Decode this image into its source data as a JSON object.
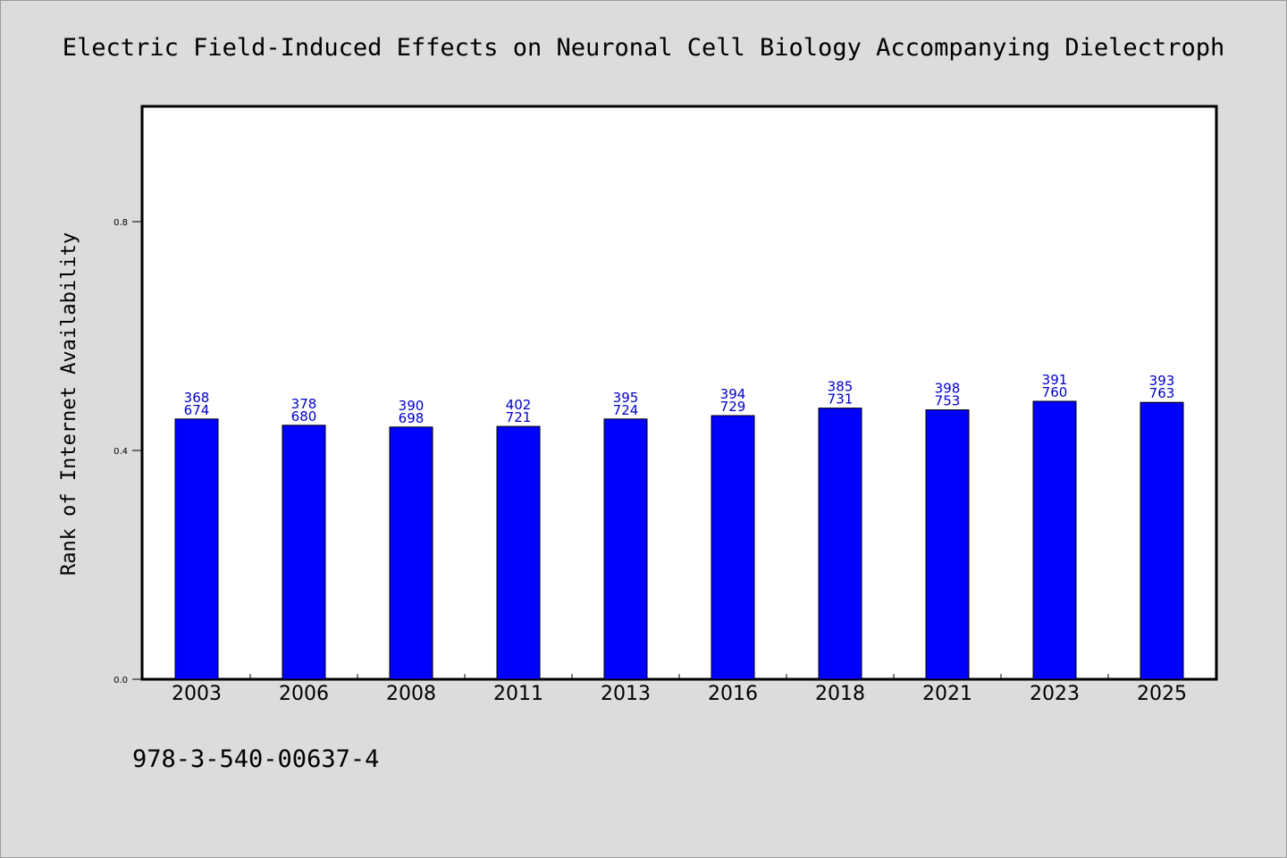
{
  "chart_data": {
    "type": "bar",
    "title": "Electric Field-Induced Effects on Neuronal Cell Biology Accompanying Dielectroph",
    "xlabel": "",
    "ylabel": "Rank of Internet Availability",
    "ylim": [
      0,
      1.0
    ],
    "yticks": [
      "0.0",
      "0.4",
      "0.8"
    ],
    "ytick_values": [
      0.0,
      0.4,
      0.8
    ],
    "grid": false,
    "categories": [
      "2003",
      "2006",
      "2008",
      "2011",
      "2013",
      "2016",
      "2018",
      "2021",
      "2023",
      "2025"
    ],
    "values": [
      0.455,
      0.444,
      0.441,
      0.442,
      0.455,
      0.461,
      0.474,
      0.471,
      0.486,
      0.484
    ],
    "labels_top": [
      "368",
      "378",
      "390",
      "402",
      "395",
      "394",
      "385",
      "398",
      "391",
      "393"
    ],
    "labels_bottom": [
      "674",
      "680",
      "698",
      "721",
      "724",
      "729",
      "731",
      "753",
      "760",
      "763"
    ],
    "bar_color": "#0000ff",
    "label_color": "#0000cc"
  },
  "footer": {
    "isbn": "978-3-540-00637-4"
  }
}
